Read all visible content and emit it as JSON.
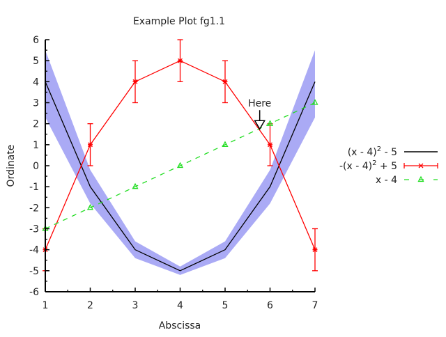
{
  "chart_data": {
    "type": "line",
    "title": "Example Plot fg1.1",
    "xlabel": "Abscissa",
    "ylabel": "Ordinate",
    "xlim": [
      1,
      7
    ],
    "ylim": [
      -6,
      6
    ],
    "xticks": [
      1,
      2,
      3,
      4,
      5,
      6,
      7
    ],
    "yticks": [
      -6,
      -5,
      -4,
      -3,
      -2,
      -1,
      0,
      1,
      2,
      3,
      4,
      5,
      6
    ],
    "grid": false,
    "legend_position": "right",
    "x": [
      1,
      2,
      3,
      4,
      5,
      6,
      7
    ],
    "series": [
      {
        "name": "(x - 4)² - 5",
        "name_base": "(x - 4)",
        "name_sup": "2",
        "name_tail": " - 5",
        "values": [
          4,
          -1,
          -4,
          -5,
          -4,
          -1,
          4
        ],
        "band_lower": [
          2.3,
          -1.8,
          -4.4,
          -5.2,
          -4.4,
          -1.8,
          2.3
        ],
        "band_upper": [
          5.5,
          -0.2,
          -3.6,
          -4.8,
          -3.6,
          -0.2,
          5.5
        ],
        "color": "#000000",
        "band_color": "#aaaaf5",
        "style": "solid"
      },
      {
        "name": "-(x - 4)² + 5",
        "name_base": "-(x - 4)",
        "name_sup": "2",
        "name_tail": " + 5",
        "values": [
          -4,
          1,
          4,
          5,
          4,
          1,
          -4
        ],
        "error": [
          1,
          1,
          1,
          1,
          1,
          1,
          1
        ],
        "color": "#ff0000",
        "marker": "asterisk",
        "style": "solid"
      },
      {
        "name": "x - 4",
        "name_base": "x - 4",
        "name_sup": "",
        "name_tail": "",
        "values": [
          -3,
          -2,
          -1,
          0,
          1,
          2,
          3
        ],
        "color": "#22dd22",
        "marker": "triangle",
        "style": "dashed"
      }
    ],
    "annotations": [
      {
        "text": "Here",
        "x": 5.77,
        "y": 1.75
      }
    ]
  }
}
